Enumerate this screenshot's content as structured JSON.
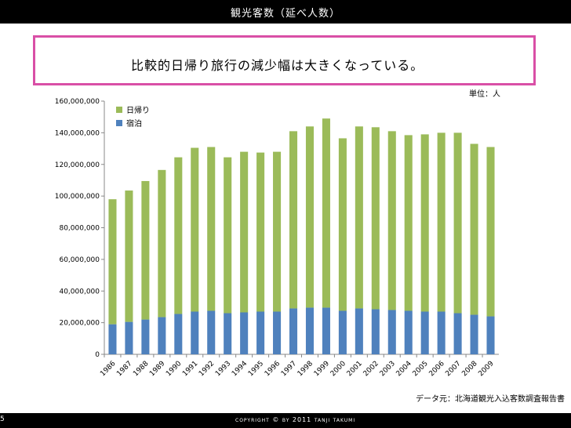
{
  "header": {
    "title": "観光客数（延べ人数）"
  },
  "callout": {
    "text": "比較的日帰り旅行の減少幅は大きくなっている。"
  },
  "unit_label": "単位：人",
  "source_label": "データ元：北海道観光入込客数調査報告書",
  "footer": {
    "slide_number": "5",
    "copyright": "copyright © by 2011 tanji takumi"
  },
  "colors": {
    "day_trip": "#9bbb59",
    "overnight": "#4f81bd",
    "callout_border": "#d94fa6"
  },
  "chart_data": {
    "type": "bar",
    "stacked": true,
    "title": "",
    "xlabel": "",
    "ylabel": "",
    "ylim": [
      0,
      160000000
    ],
    "y_ticks": [
      "0",
      "20,000,000",
      "40,000,000",
      "60,000,000",
      "80,000,000",
      "100,000,000",
      "120,000,000",
      "140,000,000",
      "160,000,000"
    ],
    "categories": [
      "1986",
      "1987",
      "1988",
      "1989",
      "1990",
      "1991",
      "1992",
      "1993",
      "1994",
      "1995",
      "1996",
      "1997",
      "1998",
      "1999",
      "2000",
      "2001",
      "2002",
      "2003",
      "2004",
      "2005",
      "2006",
      "2007",
      "2008",
      "2009"
    ],
    "series": [
      {
        "name": "宿泊",
        "values": [
          19000000,
          20500000,
          22000000,
          23500000,
          25500000,
          27000000,
          27500000,
          26000000,
          26500000,
          27000000,
          27000000,
          29000000,
          29500000,
          29500000,
          27500000,
          29000000,
          28500000,
          28000000,
          27500000,
          27000000,
          27000000,
          26000000,
          25000000,
          24000000
        ]
      },
      {
        "name": "日帰り",
        "values": [
          79000000,
          83000000,
          87500000,
          93000000,
          99000000,
          103500000,
          103500000,
          98500000,
          101500000,
          100500000,
          101000000,
          112000000,
          114500000,
          119500000,
          109000000,
          115000000,
          115000000,
          113000000,
          111000000,
          112000000,
          113000000,
          114000000,
          108000000,
          107000000
        ]
      }
    ],
    "legend": [
      {
        "name": "日帰り",
        "color_key": "day_trip"
      },
      {
        "name": "宿泊",
        "color_key": "overnight"
      }
    ],
    "legend_position": "top-left",
    "grid": false
  }
}
